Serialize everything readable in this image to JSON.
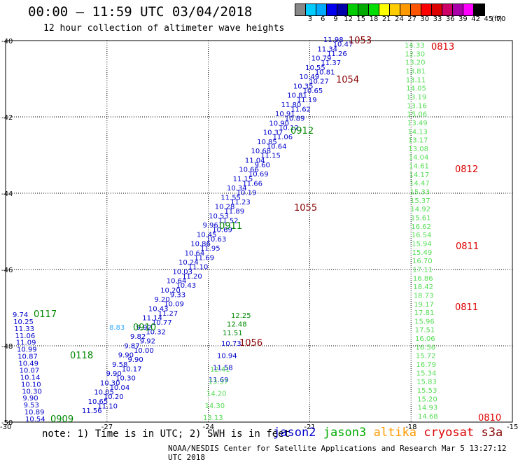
{
  "header": {
    "title": "00:00 – 11:59 UTC 03/04/2018",
    "subtitle": "12 hour collection of altimeter wave heights"
  },
  "colorbar": {
    "colors": [
      "#888888",
      "#00ccff",
      "#00aaff",
      "#0000ee",
      "#0000aa",
      "#00cc00",
      "#00aa00",
      "#00dd00",
      "#ffff00",
      "#ffcc00",
      "#ff9900",
      "#ff5500",
      "#ff0000",
      "#dd0000",
      "#cc0066",
      "#aa00aa",
      "#ff00ff",
      "#000000"
    ],
    "labels": [
      "3",
      "6",
      "9",
      "12",
      "15",
      "18",
      "21",
      "24",
      "27",
      "30",
      "33",
      "36",
      "39",
      "42",
      "45",
      "70"
    ],
    "unit": "(ft)"
  },
  "axes": {
    "lat_labels": [
      "-40",
      "-42",
      "-44",
      "-46",
      "-48",
      "-50"
    ],
    "lon_labels": [
      "-30",
      "-27",
      "-24",
      "-21",
      "-18",
      "-15"
    ]
  },
  "passes": {
    "jason2": {
      "color": "#0000cc",
      "track_a": [
        "11.98",
        "10.47",
        "11.34",
        "11.26",
        "10.79",
        "11.37",
        "10.55",
        "10.81",
        "10.49",
        "10.27",
        "10.35",
        "10.65",
        "10.81",
        "11.19",
        "11.80",
        "11.62",
        "10.91",
        "10.89",
        "10.90",
        "10.12",
        "10.37",
        "11.06",
        "10.85",
        "10.64",
        "10.68",
        "11.15",
        "11.04",
        "9.60",
        "10.66",
        "10.69",
        "11.15",
        "11.66",
        "10.34",
        "10.19",
        "11.55",
        "11.23",
        "10.28",
        "11.89",
        "10.53",
        "11.52",
        "9.96",
        "10.69",
        "10.45",
        "10.63",
        "10.86",
        "11.95",
        "10.64",
        "11.69",
        "10.24",
        "11.10",
        "10.03",
        "11.20",
        "10.64",
        "10.43",
        "10.20",
        "9.33",
        "9.20",
        "10.09",
        "10.43",
        "11.27",
        "11.14",
        "10.77",
        "9.92",
        "10.32",
        "9.82",
        "9.92",
        "9.87",
        "10.00",
        "9.90",
        "9.90",
        "9.58",
        "10.17",
        "9.90",
        "10.30",
        "10.30",
        "10.04",
        "10.05",
        "10.20",
        "10.65",
        "11.10",
        "11.56"
      ],
      "track_b": [
        "9.74",
        "10.25",
        "11.33",
        "11.06",
        "11.09",
        "10.99",
        "10.87",
        "10.49",
        "10.07",
        "10.14",
        "10.10",
        "10.30",
        "9.90",
        "9.53",
        "10.89",
        "10.54"
      ],
      "track_c": [
        "10.73",
        "10.94",
        "11.58",
        "11.69"
      ],
      "times": [
        "1053",
        "1054",
        "1055",
        "1056"
      ],
      "times_color": "#880000"
    },
    "jason3": {
      "color": "#008800",
      "times": [
        "0912",
        "0911",
        "0910",
        "0117",
        "0118",
        "0909"
      ],
      "track_values": [
        "12.25",
        "12.48",
        "11.51"
      ]
    },
    "jason3_light": {
      "color": "#55dd55",
      "values": [
        "14.33",
        "12.30",
        "13.20",
        "13.81",
        "13.11",
        "14.05",
        "13.19",
        "13.16",
        "15.06",
        "13.49",
        "14.13",
        "13.17",
        "13.08",
        "14.04",
        "14.61",
        "14.17",
        "14.47",
        "15.33",
        "15.37",
        "14.92",
        "15.61",
        "16.62",
        "16.54",
        "15.94",
        "15.49",
        "16.70",
        "17.11",
        "16.86",
        "18.42",
        "18.73",
        "19.17",
        "17.81",
        "15.96",
        "17.51",
        "16.06",
        "16.56",
        "15.72",
        "16.79",
        "15.34",
        "15.83",
        "15.53",
        "15.20",
        "14.93",
        "14.68"
      ],
      "track2": [
        "12.41",
        "13.37",
        "14.20",
        "14.30",
        "13.13"
      ]
    },
    "highlight": {
      "value": "8.83",
      "color": "#33aaff"
    },
    "cryosat": {
      "color": "#dd0000",
      "times": [
        "0813",
        "0812",
        "0811",
        "0811",
        "0810"
      ]
    }
  },
  "footer": {
    "note": "note: 1) Time is in UTC; 2) SWH is in feet",
    "sat_labels": [
      {
        "name": "jason2",
        "color": "#0000cc"
      },
      {
        "name": "jason3",
        "color": "#00aa00"
      },
      {
        "name": "altika",
        "color": "#ff9900"
      },
      {
        "name": "cryosat",
        "color": "#dd0000"
      },
      {
        "name": "s3a",
        "color": "#880000"
      }
    ],
    "credit": "NOAA/NESDIS Center for Satellite Applications and Research   Mar  5 13:27:12 UTC 2018"
  }
}
